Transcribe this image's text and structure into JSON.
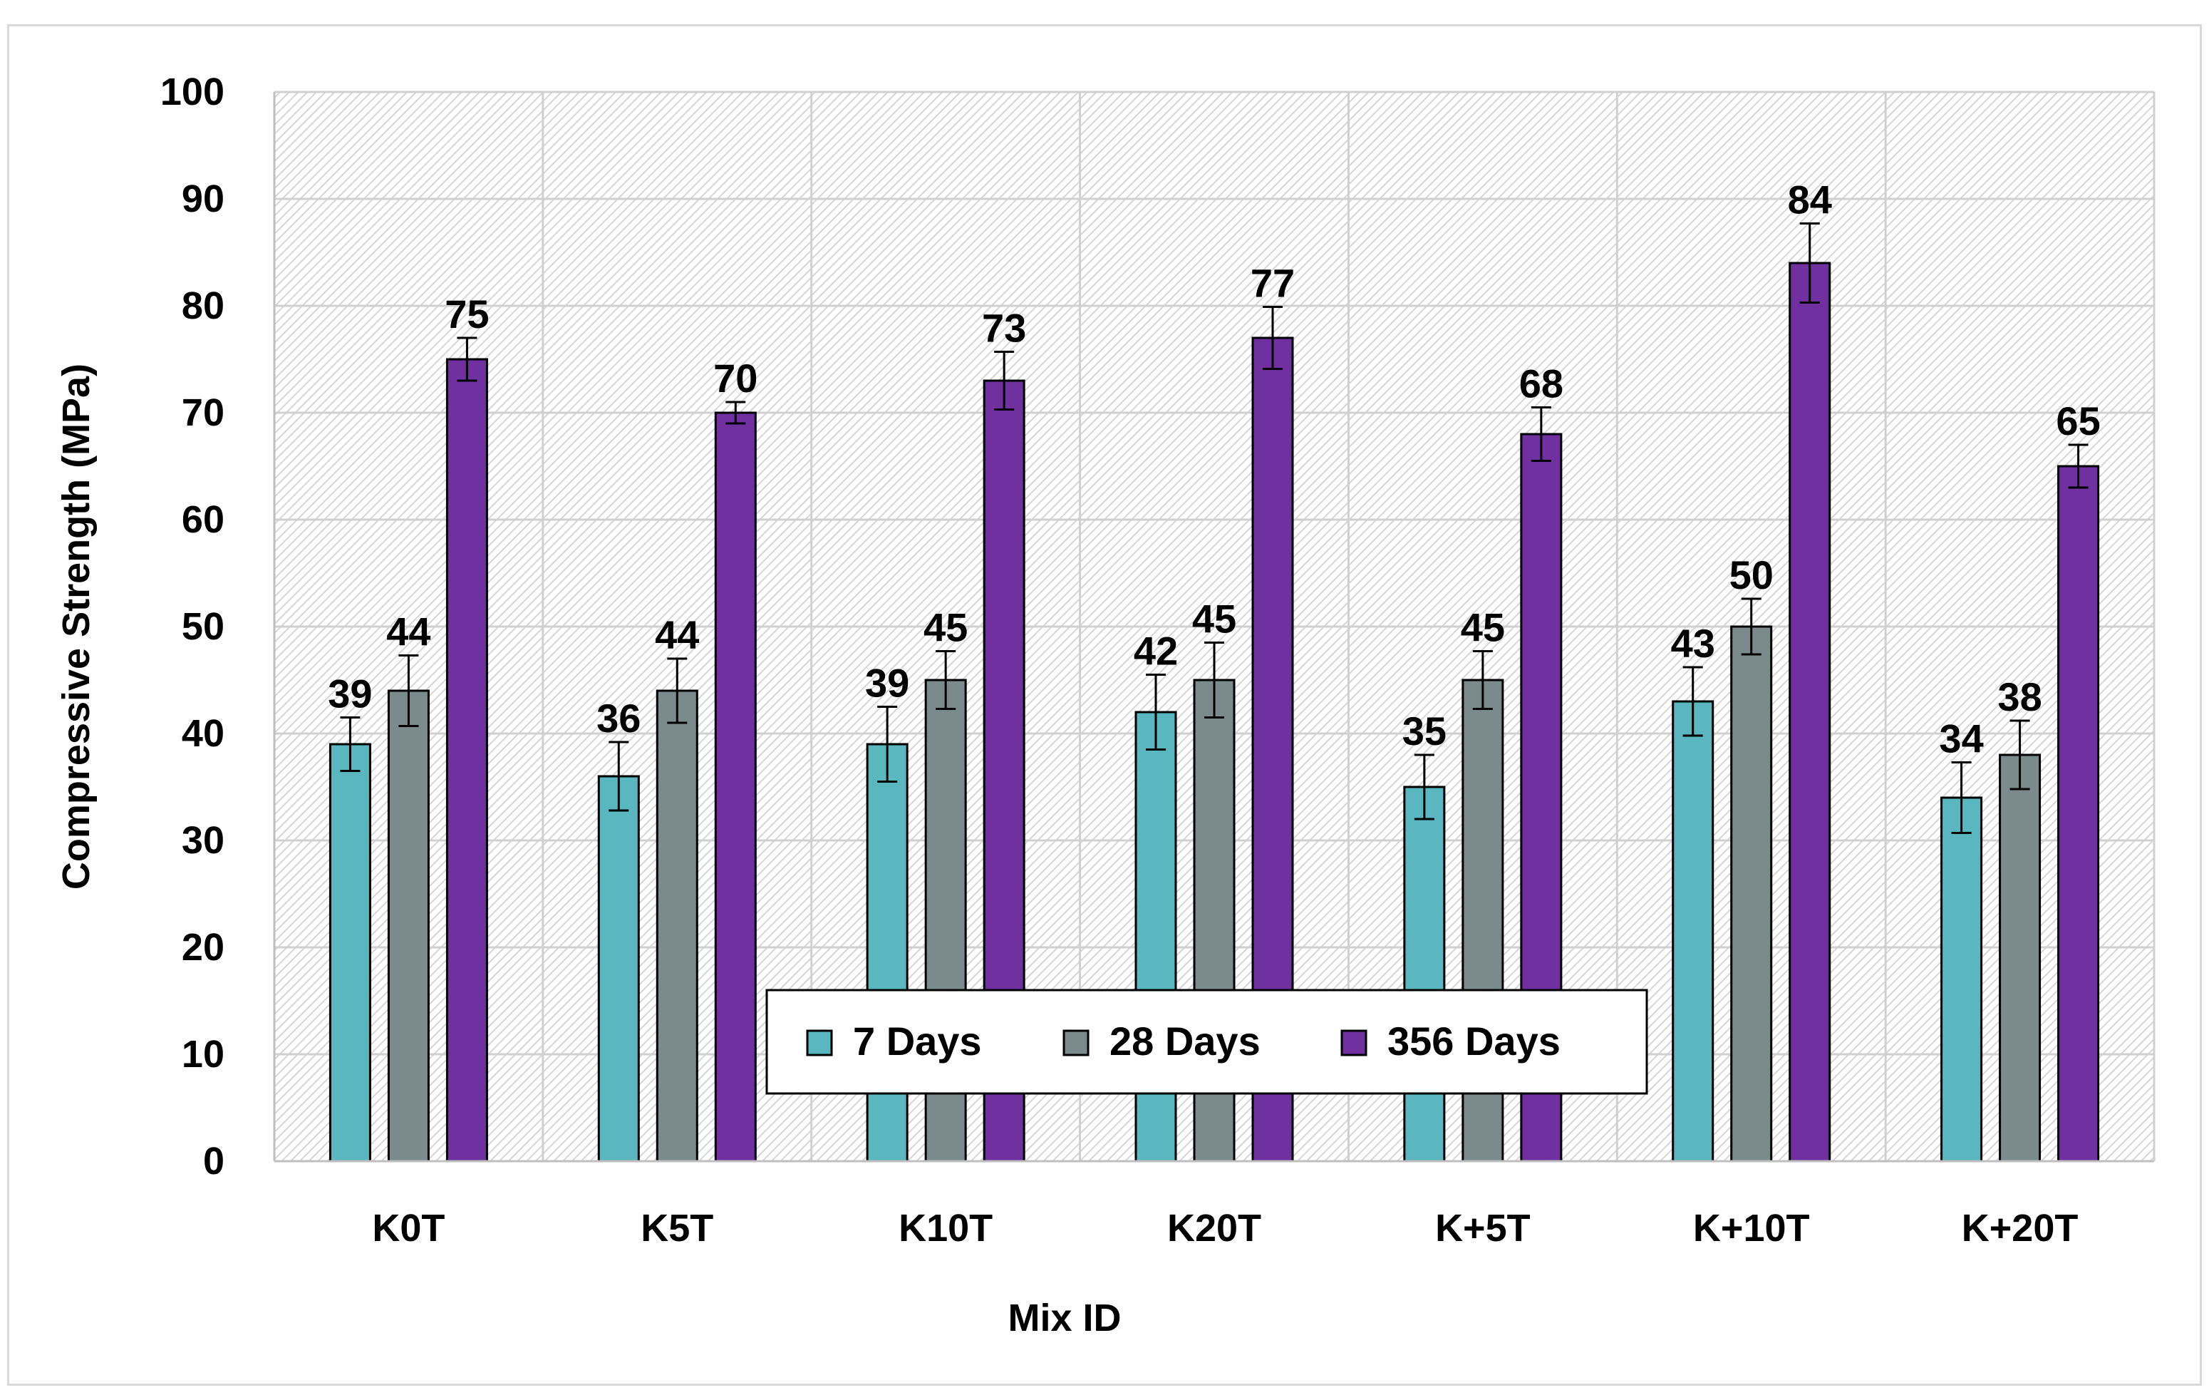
{
  "chart_data": {
    "type": "bar",
    "title": "",
    "xlabel": "Mix ID",
    "ylabel": "Compressive Strength (MPa)",
    "ylim": [
      0,
      100
    ],
    "yticks": [
      0,
      10,
      20,
      30,
      40,
      50,
      60,
      70,
      80,
      90,
      100
    ],
    "ytick_labels": [
      "0",
      "10",
      "20",
      "30",
      "40",
      "50",
      "60",
      "70",
      "80",
      "90",
      "100"
    ],
    "grid": true,
    "legend_position": "bottom-center inside",
    "categories": [
      "K0T",
      "K5T",
      "K10T",
      "K20T",
      "K+5T",
      "K+10T",
      "K+20T"
    ],
    "series": [
      {
        "name": "7 Days",
        "color": "#5ab7c0",
        "values": [
          39,
          36,
          39,
          42,
          35,
          43,
          34
        ],
        "errors": [
          2.5,
          3.2,
          3.5,
          3.5,
          3.0,
          3.2,
          3.3
        ]
      },
      {
        "name": "28 Days",
        "color": "#7b8a8a",
        "values": [
          44,
          44,
          45,
          45,
          45,
          50,
          38
        ],
        "errors": [
          3.3,
          3.0,
          2.7,
          3.5,
          2.7,
          2.6,
          3.2
        ]
      },
      {
        "name": "356 Days",
        "color": "#7030a0",
        "values": [
          75,
          70,
          73,
          77,
          68,
          84,
          65
        ],
        "errors": [
          2.0,
          1.0,
          2.7,
          2.9,
          2.5,
          3.7,
          2.0
        ]
      }
    ],
    "data_labels": [
      [
        "39",
        "36",
        "39",
        "42",
        "35",
        "43",
        "34"
      ],
      [
        "44",
        "44",
        "45",
        "45",
        "45",
        "50",
        "38"
      ],
      [
        "75",
        "70",
        "73",
        "77",
        "68",
        "84",
        "65"
      ]
    ]
  }
}
